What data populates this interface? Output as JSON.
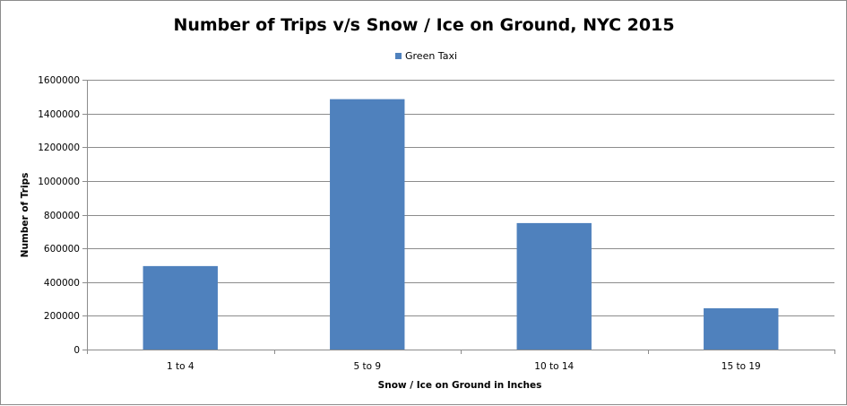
{
  "chart_data": {
    "type": "bar",
    "title": "Number of Trips v/s Snow / Ice on Ground, NYC 2015",
    "xlabel": "Snow / Ice on Ground in Inches",
    "ylabel": "Number of Trips",
    "categories": [
      "1 to 4",
      "5 to 9",
      "10 to 14",
      "15 to 19"
    ],
    "series": [
      {
        "name": "Green Taxi",
        "values": [
          495000,
          1485000,
          750000,
          245000
        ],
        "color": "#4f81bd"
      }
    ],
    "ylim": [
      0,
      1600000
    ],
    "yticks": [
      "0",
      "200000",
      "400000",
      "600000",
      "800000",
      "1000000",
      "1200000",
      "1400000",
      "1600000"
    ],
    "grid": true,
    "legend_position": "top"
  }
}
